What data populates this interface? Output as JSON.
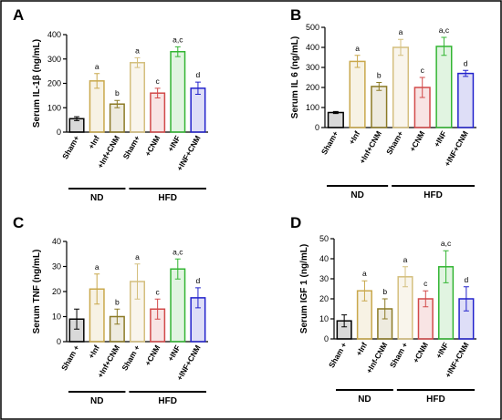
{
  "chart_data": [
    {
      "type": "bar",
      "panel_label": "A",
      "y_label": "Serum IL-1β (ng/mL)",
      "categories": [
        "Sham+",
        "+Inf",
        "+Inf+CNM",
        "Sham+",
        "+CNM",
        "+INF",
        "+INF+CNM"
      ],
      "values": [
        55,
        210,
        115,
        285,
        160,
        330,
        180
      ],
      "errors": [
        8,
        30,
        15,
        20,
        20,
        20,
        25
      ],
      "annotations": [
        null,
        "a",
        "b",
        "a",
        "c",
        "a,c",
        "d"
      ],
      "colors": [
        "#000000",
        "#c9a84c",
        "#8c7a26",
        "#d4bf7e",
        "#d24a4a",
        "#33b533",
        "#2323cc"
      ],
      "groups": [
        "ND",
        "HFD"
      ],
      "ylim": [
        0,
        400
      ],
      "yticks": [
        0,
        100,
        200,
        300,
        400
      ]
    },
    {
      "type": "bar",
      "panel_label": "B",
      "y_label": "Serum IL 6 (ng/mL)",
      "categories": [
        "Sham+",
        "+Inf",
        "+Inf+CNM",
        "Sham+",
        "+CNM",
        "+INF",
        "+INF+CNM"
      ],
      "values": [
        75,
        330,
        205,
        400,
        200,
        405,
        270
      ],
      "errors": [
        5,
        30,
        20,
        40,
        50,
        45,
        15
      ],
      "annotations": [
        null,
        "a",
        "b",
        "a",
        "c",
        "a,c",
        "d"
      ],
      "colors": [
        "#000000",
        "#c9a84c",
        "#8c7a26",
        "#d4bf7e",
        "#d24a4a",
        "#33b533",
        "#2323cc"
      ],
      "groups": [
        "ND",
        "HFD"
      ],
      "ylim": [
        0,
        500
      ],
      "yticks": [
        0,
        100,
        200,
        300,
        400,
        500
      ]
    },
    {
      "type": "bar",
      "panel_label": "C",
      "y_label": "Serum TNF (ng/mL)",
      "categories": [
        "Sham +",
        "+Inf",
        "+Inf+CNM",
        "Sham +",
        "+CNM",
        "+INF",
        "+INF+CNM"
      ],
      "values": [
        9,
        21,
        10,
        24,
        13,
        29,
        17.5
      ],
      "errors": [
        4,
        6,
        3,
        7,
        4,
        4,
        4
      ],
      "annotations": [
        null,
        "a",
        "b",
        "a",
        "c",
        "a,c",
        "d"
      ],
      "colors": [
        "#000000",
        "#c9a84c",
        "#8c7a26",
        "#d4bf7e",
        "#d24a4a",
        "#33b533",
        "#2323cc"
      ],
      "groups": [
        "ND",
        "HFD"
      ],
      "ylim": [
        0,
        40
      ],
      "yticks": [
        0,
        10,
        20,
        30,
        40
      ]
    },
    {
      "type": "bar",
      "panel_label": "D",
      "y_label": "Serum IGF 1 (ng/mL)",
      "categories": [
        "Sham +",
        "+Inf",
        "+Inf-CNM",
        "Sham +",
        "+CNM",
        "+INF",
        "+INF+CNM"
      ],
      "values": [
        9,
        24,
        15,
        31,
        20,
        36,
        20
      ],
      "errors": [
        3,
        5,
        5,
        5,
        4,
        8,
        6
      ],
      "annotations": [
        null,
        "a",
        "b",
        "a",
        "c",
        "a,c",
        "d"
      ],
      "colors": [
        "#000000",
        "#c9a84c",
        "#8c7a26",
        "#d4bf7e",
        "#d24a4a",
        "#33b533",
        "#2323cc"
      ],
      "groups": [
        "ND",
        "HFD"
      ],
      "ylim": [
        0,
        50
      ],
      "yticks": [
        0,
        10,
        20,
        30,
        40,
        50
      ]
    }
  ]
}
